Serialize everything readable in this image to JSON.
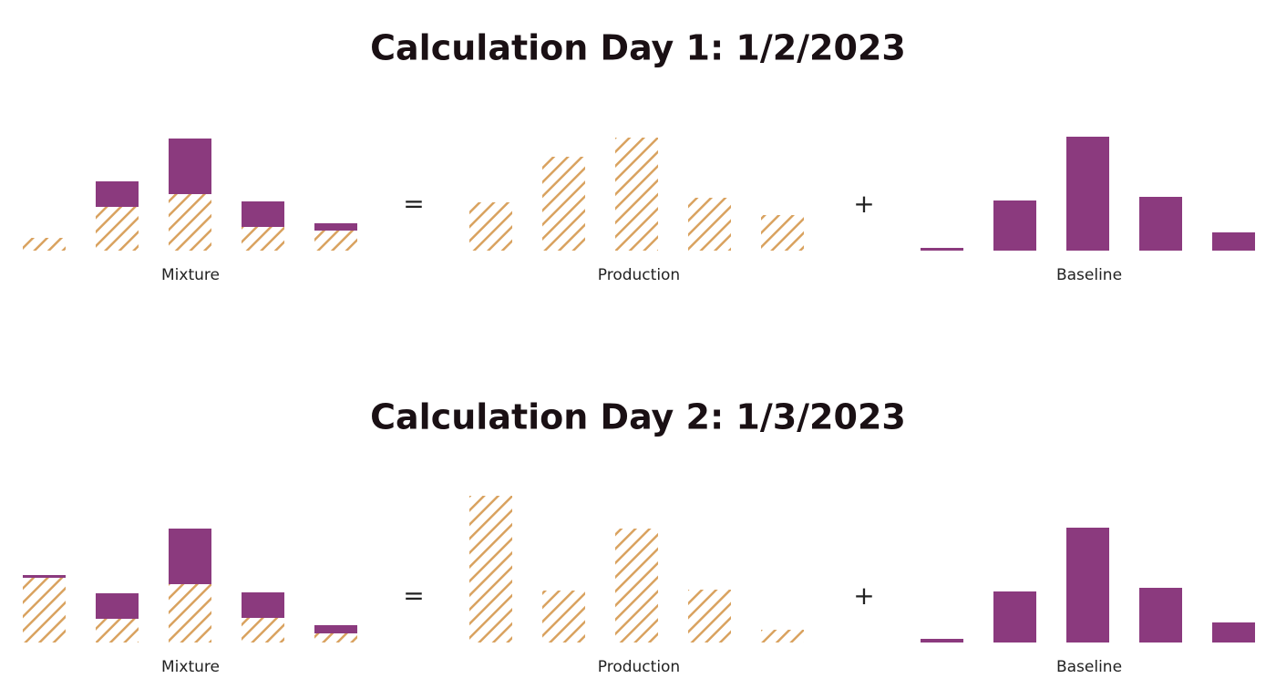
{
  "sections": [
    {
      "title": "Calculation Day 1: 1/2/2023",
      "equals": "=",
      "plus": "+",
      "mixture": {
        "label": "Mixture",
        "production": [
          14,
          48,
          62,
          26,
          22
        ],
        "baseline": [
          0,
          28,
          61,
          28,
          8
        ]
      },
      "production": {
        "label": "Production",
        "values": [
          53,
          103,
          124,
          58,
          39
        ]
      },
      "baseline": {
        "label": "Baseline",
        "values": [
          3,
          55,
          125,
          59,
          20
        ]
      }
    },
    {
      "title": "Calculation Day 2: 1/3/2023",
      "equals": "=",
      "plus": "+",
      "mixture": {
        "label": "Mixture",
        "production": [
          71,
          26,
          64,
          27,
          10
        ],
        "baseline": [
          3,
          28,
          61,
          28,
          9
        ]
      },
      "production": {
        "label": "Production",
        "values": [
          161,
          57,
          125,
          58,
          14
        ]
      },
      "baseline": {
        "label": "Baseline",
        "values": [
          4,
          56,
          126,
          60,
          22
        ]
      }
    }
  ]
}
